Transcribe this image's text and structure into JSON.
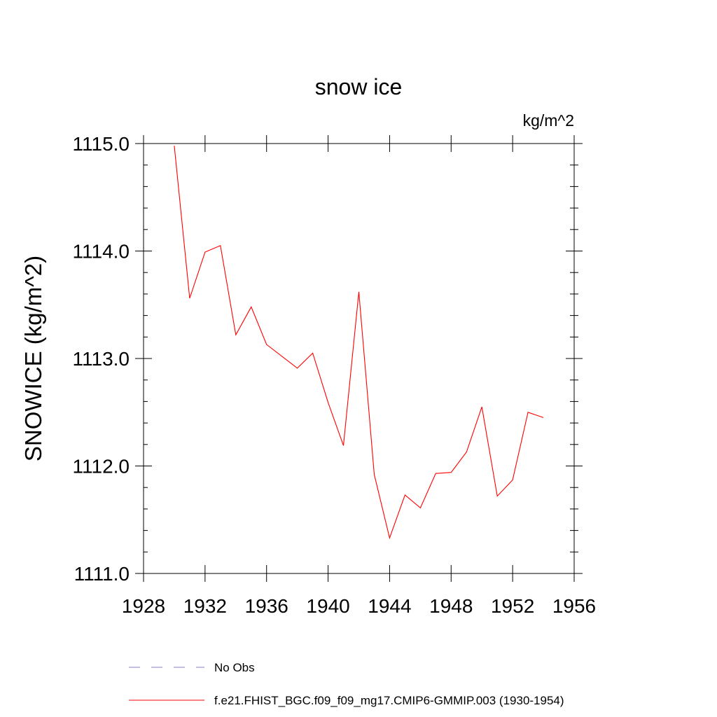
{
  "chart_data": {
    "type": "line",
    "title": "snow ice",
    "units": "kg/m^2",
    "ylabel": "SNOWICE  (kg/m^2)",
    "xlabel": "",
    "xlim": [
      1928,
      1956
    ],
    "ylim": [
      1111.0,
      1115.0
    ],
    "x_ticks": [
      1928,
      1932,
      1936,
      1940,
      1944,
      1948,
      1952,
      1956
    ],
    "x_tick_labels": [
      "1928",
      "1932",
      "1936",
      "1940",
      "1944",
      "1948",
      "1952",
      "1956"
    ],
    "y_ticks": [
      1111.0,
      1112.0,
      1113.0,
      1114.0,
      1115.0
    ],
    "y_tick_labels": [
      "1111.0",
      "1112.0",
      "1113.0",
      "1114.0",
      "1115.0"
    ],
    "grid": false,
    "legend_position": "bottom",
    "series": [
      {
        "name": "f.e21.FHIST_BGC.f09_f09_mg17.CMIP6-GMMIP.003 (1930-1954)",
        "color": "#ff0000",
        "line_style": "solid",
        "x": [
          1930,
          1931,
          1932,
          1933,
          1934,
          1935,
          1936,
          1937,
          1938,
          1939,
          1940,
          1941,
          1942,
          1943,
          1944,
          1945,
          1946,
          1947,
          1948,
          1949,
          1950,
          1951,
          1952,
          1953,
          1954
        ],
        "y": [
          1114.98,
          1113.56,
          1113.99,
          1114.05,
          1113.22,
          1113.48,
          1113.13,
          1113.02,
          1112.91,
          1113.05,
          1112.59,
          1112.19,
          1113.62,
          1111.92,
          1111.33,
          1111.73,
          1111.61,
          1111.93,
          1111.94,
          1112.13,
          1112.55,
          1111.72,
          1111.87,
          1112.5,
          1112.45
        ]
      }
    ],
    "legend": [
      {
        "label": "No Obs",
        "color": "#8080c0",
        "line_style": "dashed"
      },
      {
        "label": "f.e21.FHIST_BGC.f09_f09_mg17.CMIP6-GMMIP.003 (1930-1954)",
        "color": "#ff0000",
        "line_style": "solid"
      }
    ]
  }
}
